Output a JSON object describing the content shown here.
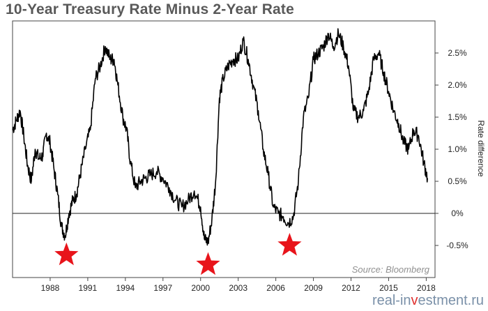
{
  "title": "10-Year Treasury Rate Minus 2-Year Rate",
  "watermark": {
    "prefix": "real-in",
    "accent": "v",
    "suffix": "estment.ru"
  },
  "chart_data": {
    "type": "line",
    "title": "10-Year Treasury Rate Minus 2-Year Rate",
    "xlabel": "",
    "ylabel": "Rate difference",
    "source": "Source: Bloomberg",
    "xlim": [
      1985,
      2018.7
    ],
    "ylim": [
      -1.0,
      3.0
    ],
    "grid": false,
    "zero_line": true,
    "x_ticks": [
      1988,
      1991,
      1994,
      1997,
      2000,
      2003,
      2006,
      2009,
      2012,
      2015,
      2018
    ],
    "y_ticks": [
      {
        "value": 2.5,
        "label": "2.5%"
      },
      {
        "value": 2.0,
        "label": "2.0%"
      },
      {
        "value": 1.5,
        "label": "1.5%"
      },
      {
        "value": 1.0,
        "label": "1.0%"
      },
      {
        "value": 0.5,
        "label": "0.5%"
      },
      {
        "value": 0.0,
        "label": "0%"
      },
      {
        "value": -0.5,
        "label": "-0.5%"
      }
    ],
    "series": [
      {
        "color": "#000000",
        "x": [
          1985.0,
          1985.3,
          1985.6,
          1985.9,
          1986.2,
          1986.5,
          1986.8,
          1987.1,
          1987.4,
          1987.7,
          1988.0,
          1988.3,
          1988.6,
          1988.9,
          1989.2,
          1989.5,
          1989.8,
          1990.1,
          1990.4,
          1990.8,
          1991.2,
          1991.6,
          1992.0,
          1992.4,
          1992.8,
          1993.1,
          1993.4,
          1993.8,
          1994.1,
          1994.4,
          1994.8,
          1995.2,
          1995.6,
          1996.0,
          1996.5,
          1997.0,
          1997.5,
          1998.0,
          1998.5,
          1999.0,
          1999.5,
          2000.0,
          2000.3,
          2000.6,
          2000.9,
          2001.2,
          2001.5,
          2001.8,
          2002.2,
          2002.6,
          2003.0,
          2003.4,
          2003.8,
          2004.2,
          2004.6,
          2005.0,
          2005.4,
          2005.8,
          2006.2,
          2006.6,
          2007.0,
          2007.4,
          2007.8,
          2008.2,
          2008.6,
          2009.0,
          2009.4,
          2009.8,
          2010.2,
          2010.6,
          2011.0,
          2011.4,
          2011.8,
          2012.2,
          2012.6,
          2013.0,
          2013.4,
          2013.8,
          2014.2,
          2014.6,
          2015.0,
          2015.4,
          2015.8,
          2016.2,
          2016.6,
          2017.0,
          2017.4,
          2017.8,
          2018.1
        ],
        "values": [
          1.3,
          1.45,
          1.6,
          1.2,
          0.75,
          0.5,
          1.0,
          0.85,
          0.9,
          1.25,
          1.1,
          0.7,
          0.3,
          -0.2,
          -0.35,
          0.0,
          0.2,
          0.3,
          0.6,
          1.0,
          1.3,
          2.1,
          2.3,
          2.6,
          2.4,
          2.4,
          2.0,
          1.5,
          1.3,
          0.8,
          0.4,
          0.5,
          0.55,
          0.6,
          0.65,
          0.55,
          0.4,
          0.2,
          0.1,
          0.2,
          0.35,
          0.1,
          -0.4,
          -0.45,
          -0.1,
          0.5,
          1.8,
          2.1,
          2.3,
          2.4,
          2.4,
          2.7,
          2.4,
          2.0,
          1.6,
          1.0,
          0.6,
          0.1,
          0.0,
          -0.05,
          -0.15,
          -0.05,
          0.5,
          1.5,
          1.8,
          2.4,
          2.5,
          2.6,
          2.8,
          2.6,
          2.8,
          2.6,
          2.3,
          1.6,
          1.5,
          1.6,
          1.9,
          2.4,
          2.5,
          2.2,
          1.9,
          1.6,
          1.4,
          1.1,
          1.0,
          1.3,
          1.2,
          0.8,
          0.55
        ]
      }
    ],
    "markers": [
      {
        "x": 1989.3,
        "y": -0.65,
        "shape": "star",
        "color": "#e8141b"
      },
      {
        "x": 2000.6,
        "y": -0.8,
        "shape": "star",
        "color": "#e8141b"
      },
      {
        "x": 2007.1,
        "y": -0.5,
        "shape": "star",
        "color": "#e8141b"
      }
    ]
  }
}
